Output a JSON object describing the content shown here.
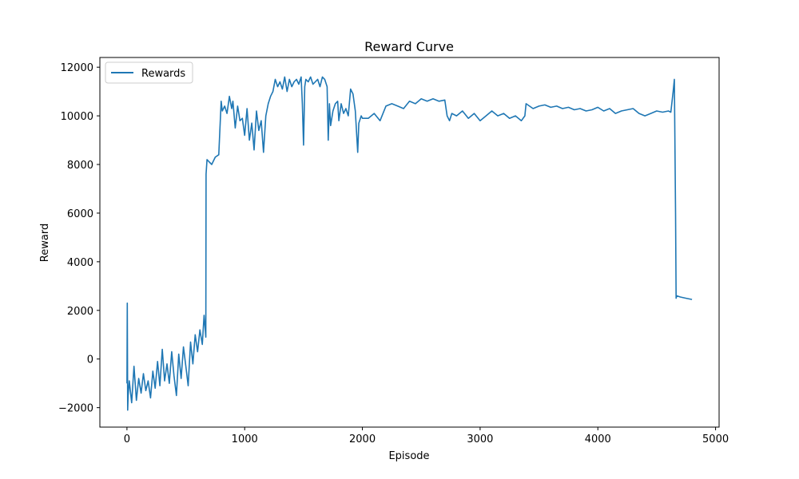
{
  "chart_data": {
    "type": "line",
    "title": "Reward Curve",
    "xlabel": "Episode",
    "ylabel": "Reward",
    "xlim": [
      -230,
      5030
    ],
    "ylim": [
      -2800,
      12400
    ],
    "xticks": [
      0,
      1000,
      2000,
      3000,
      4000,
      5000
    ],
    "xtick_labels": [
      "0",
      "1000",
      "2000",
      "3000",
      "4000",
      "5000"
    ],
    "yticks": [
      -2000,
      0,
      2000,
      4000,
      6000,
      8000,
      10000,
      12000
    ],
    "ytick_labels": [
      "−2000",
      "0",
      "2000",
      "4000",
      "6000",
      "8000",
      "10000",
      "12000"
    ],
    "grid": false,
    "legend_position": "top-left",
    "colors": {
      "series": "#1f77b4",
      "axes": "#000000",
      "background": "#ffffff"
    },
    "series": [
      {
        "name": "Rewards",
        "x": [
          0,
          3,
          6,
          10,
          20,
          40,
          60,
          80,
          100,
          120,
          140,
          160,
          180,
          200,
          220,
          240,
          260,
          280,
          300,
          320,
          340,
          360,
          380,
          400,
          420,
          440,
          460,
          480,
          500,
          520,
          540,
          560,
          580,
          600,
          620,
          640,
          655,
          670,
          672,
          680,
          700,
          720,
          750,
          780,
          800,
          810,
          830,
          850,
          870,
          890,
          900,
          920,
          940,
          960,
          980,
          1000,
          1020,
          1040,
          1060,
          1080,
          1100,
          1120,
          1140,
          1160,
          1180,
          1200,
          1220,
          1240,
          1260,
          1280,
          1300,
          1320,
          1340,
          1360,
          1380,
          1400,
          1420,
          1440,
          1460,
          1480,
          1490,
          1500,
          1510,
          1520,
          1540,
          1560,
          1580,
          1600,
          1620,
          1640,
          1660,
          1680,
          1700,
          1710,
          1720,
          1730,
          1750,
          1770,
          1790,
          1800,
          1820,
          1840,
          1860,
          1880,
          1900,
          1920,
          1940,
          1960,
          1970,
          1990,
          2000,
          2050,
          2100,
          2150,
          2200,
          2250,
          2300,
          2350,
          2400,
          2450,
          2500,
          2550,
          2600,
          2650,
          2700,
          2720,
          2740,
          2760,
          2800,
          2850,
          2900,
          2950,
          3000,
          3050,
          3100,
          3150,
          3200,
          3250,
          3300,
          3350,
          3380,
          3390,
          3450,
          3500,
          3550,
          3600,
          3650,
          3700,
          3750,
          3800,
          3850,
          3900,
          3950,
          4000,
          4050,
          4100,
          4150,
          4200,
          4250,
          4300,
          4350,
          4400,
          4450,
          4500,
          4550,
          4600,
          4620,
          4640,
          4650,
          4660,
          4665,
          4670,
          4700,
          4750,
          4800
        ],
        "y": [
          -1000,
          2300,
          -2100,
          -1500,
          -900,
          -1800,
          -300,
          -1700,
          -800,
          -1400,
          -600,
          -1300,
          -900,
          -1600,
          -500,
          -1200,
          -100,
          -1100,
          400,
          -900,
          -200,
          -1000,
          300,
          -700,
          -1500,
          200,
          -800,
          500,
          -300,
          -1100,
          700,
          -200,
          1000,
          300,
          1200,
          600,
          1800,
          900,
          7600,
          8200,
          8100,
          8000,
          8300,
          8400,
          10600,
          10200,
          10400,
          10100,
          10800,
          10300,
          10600,
          9500,
          10400,
          9800,
          9900,
          9200,
          10300,
          9000,
          9700,
          8600,
          10200,
          9400,
          9800,
          8500,
          10000,
          10500,
          10800,
          11000,
          11500,
          11200,
          11400,
          11100,
          11600,
          11000,
          11500,
          11200,
          11400,
          11500,
          11300,
          11600,
          10500,
          8800,
          11200,
          11500,
          11400,
          11600,
          11300,
          11400,
          11500,
          11200,
          11600,
          11500,
          11200,
          9000,
          10500,
          9600,
          10200,
          10500,
          10600,
          9800,
          10500,
          10100,
          10300,
          10000,
          11100,
          10900,
          10200,
          8500,
          9700,
          10000,
          9900,
          9900,
          10100,
          9800,
          10400,
          10500,
          10400,
          10300,
          10600,
          10500,
          10700,
          10600,
          10700,
          10600,
          10650,
          10000,
          9800,
          10100,
          10000,
          10200,
          9900,
          10100,
          9800,
          10000,
          10200,
          10000,
          10100,
          9900,
          10000,
          9800,
          10000,
          10500,
          10300,
          10400,
          10450,
          10350,
          10400,
          10300,
          10350,
          10250,
          10300,
          10200,
          10250,
          10350,
          10200,
          10300,
          10100,
          10200,
          10250,
          10300,
          10100,
          10000,
          10100,
          10200,
          10150,
          10200,
          10150,
          11000,
          11500,
          6000,
          2500,
          2600,
          2550,
          2500,
          2450
        ]
      }
    ]
  }
}
